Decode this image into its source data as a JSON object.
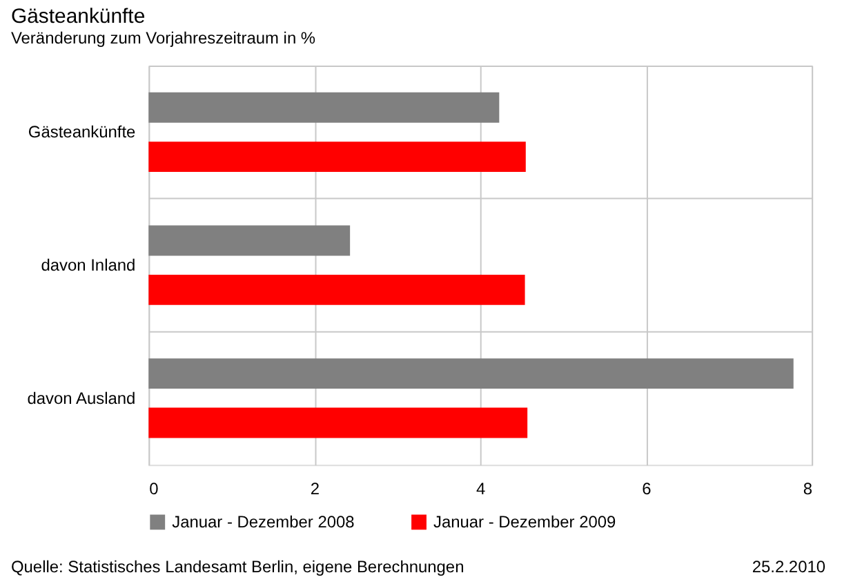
{
  "chart_data": {
    "type": "bar",
    "orientation": "horizontal",
    "title": "Gästeankünfte",
    "subtitle": "Veränderung zum Vorjahreszeitraum  in %",
    "categories": [
      "Gästeankünfte",
      "davon Inland",
      "davon Ausland"
    ],
    "series": [
      {
        "name": "Januar - Dezember 2008",
        "color": "#808080",
        "values": [
          4.23,
          2.43,
          7.78
        ]
      },
      {
        "name": "Januar - Dezember 2009",
        "color": "#ff0000",
        "values": [
          4.55,
          4.54,
          4.57
        ]
      }
    ],
    "xlim": [
      0,
      8
    ],
    "xticks": [
      0,
      2,
      4,
      6,
      8
    ],
    "grid": true,
    "legend": "bottom",
    "annotations": [
      "Quelle: Statistisches Landesamt Berlin, eigene Berechnungen",
      "25.2.2010"
    ]
  }
}
